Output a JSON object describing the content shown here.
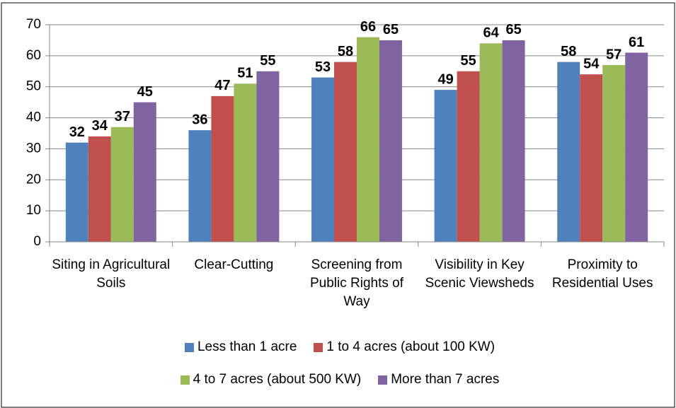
{
  "chart_data": {
    "type": "bar",
    "categories": [
      "Siting in Agricultural Soils",
      "Clear-Cutting",
      "Screening from Public Rights of Way",
      "Visibility in Key Scenic Viewsheds",
      "Proximity to Residential Uses"
    ],
    "series": [
      {
        "name": "Less than 1 acre",
        "color": "#4f81bd",
        "values": [
          32,
          36,
          53,
          49,
          58
        ]
      },
      {
        "name": "1 to 4 acres (about 100 KW)",
        "color": "#c0504d",
        "values": [
          34,
          47,
          58,
          55,
          54
        ]
      },
      {
        "name": "4 to 7 acres (about 500 KW)",
        "color": "#9bbb59",
        "values": [
          37,
          51,
          66,
          64,
          57
        ]
      },
      {
        "name": "More than 7 acres",
        "color": "#8064a2",
        "values": [
          45,
          55,
          65,
          65,
          61
        ]
      }
    ],
    "ylim": [
      0,
      70
    ],
    "yticks": [
      0,
      10,
      20,
      30,
      40,
      50,
      60,
      70
    ],
    "grid": true,
    "legend": "bottom"
  }
}
